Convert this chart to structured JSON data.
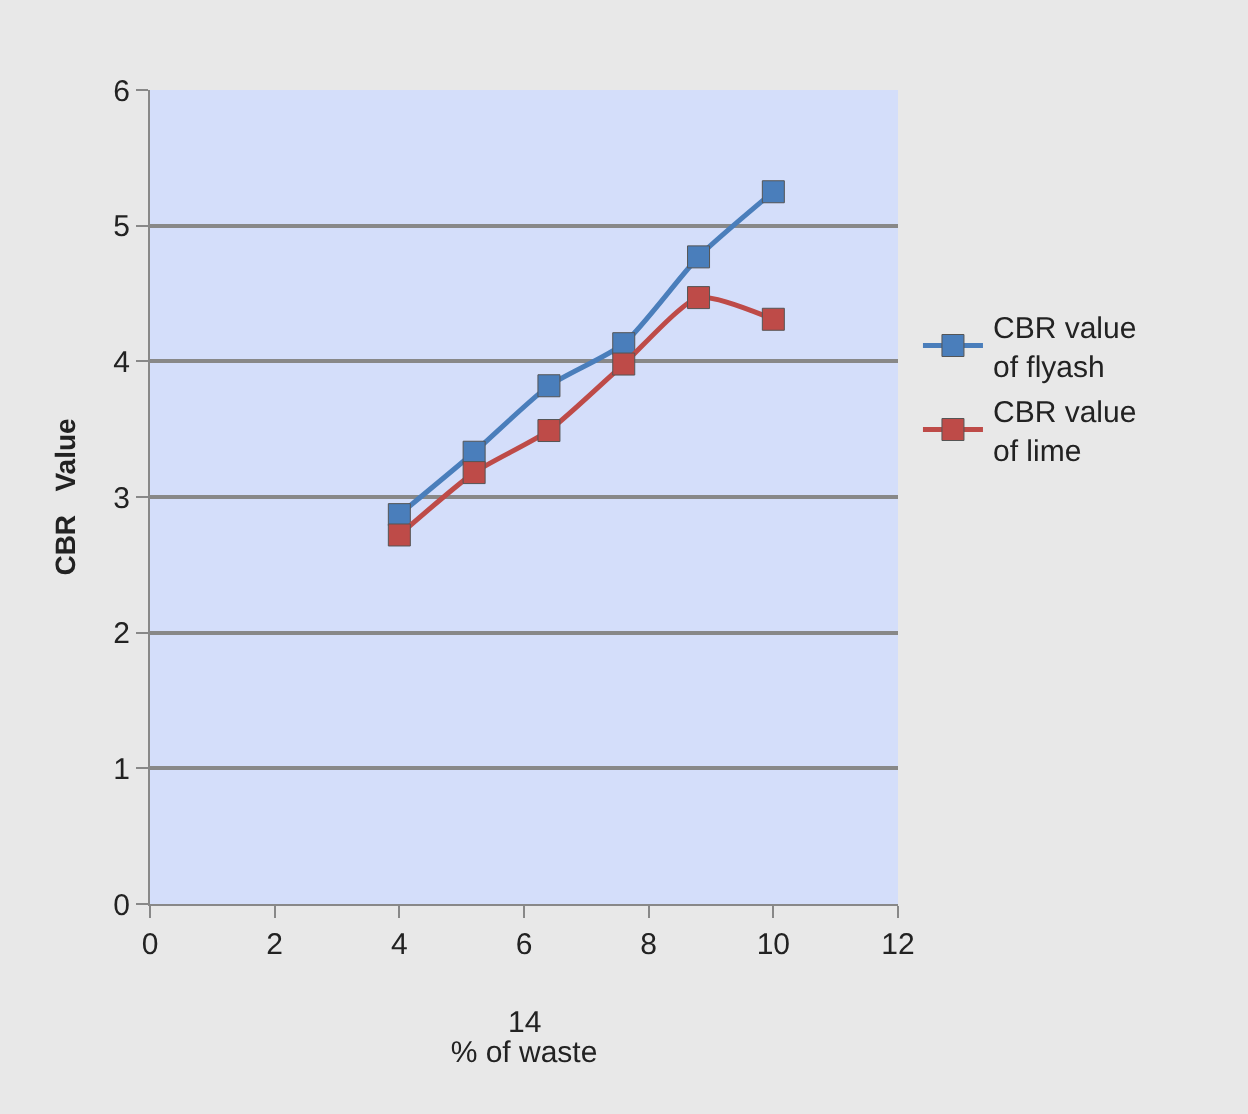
{
  "chart_data": {
    "type": "line",
    "xlabel": "% of waste",
    "ylabel": "CBR   Value",
    "x": [
      4,
      5.2,
      6.4,
      7.6,
      8.8,
      10
    ],
    "series": [
      {
        "name": "CBR value of flyash",
        "color": "#4a7ebb",
        "values": [
          2.87,
          3.33,
          3.82,
          4.13,
          4.77,
          5.25
        ]
      },
      {
        "name": "CBR value of lime",
        "color": "#be4b48",
        "values": [
          2.72,
          3.18,
          3.49,
          3.98,
          4.47,
          4.31
        ]
      }
    ],
    "xlim": [
      0,
      12
    ],
    "xticks": [
      0,
      2,
      4,
      6,
      8,
      10,
      12
    ],
    "ylim": [
      0,
      6
    ],
    "yticks": [
      0,
      1,
      2,
      3,
      4,
      5,
      6
    ],
    "annotations": [
      "14"
    ],
    "grid": "y",
    "legend": "right",
    "marker": "square",
    "line_style": "solid"
  }
}
